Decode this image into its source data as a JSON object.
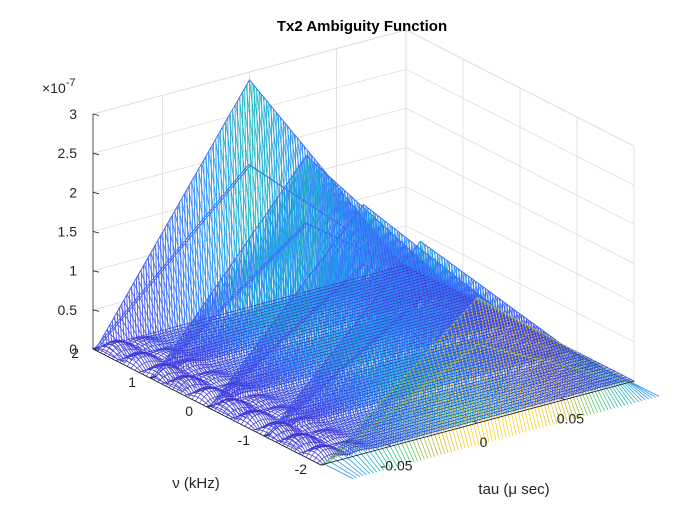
{
  "chart_data": {
    "type": "surface3d",
    "title": "Tx2 Ambiguity Function",
    "xlabel": "tau (μ sec)",
    "ylabel": "ν (kHz)",
    "zlabel": "",
    "z_exponent_label": "×10",
    "z_exponent": "-7",
    "xlim": [
      -0.09,
      0.09
    ],
    "ylim": [
      -2,
      2
    ],
    "zlim": [
      0,
      3e-07
    ],
    "x_ticks": [
      "-0.05",
      "0",
      "0.05"
    ],
    "y_ticks": [
      "2",
      "1",
      "0",
      "-1",
      "-2"
    ],
    "z_ticks": [
      "0",
      "0.5",
      "1",
      "1.5",
      "2",
      "2.5",
      "3"
    ],
    "grid": true,
    "colormap": [
      "#3d26a8",
      "#4a4ff0",
      "#2a8cff",
      "#1fb5c9",
      "#4dc47a",
      "#c9b933",
      "#f9d122"
    ],
    "ridges": [
      {
        "nu_khz": 2.0,
        "peak": 2.9e-07,
        "halfwidth_tau": 0.088
      },
      {
        "nu_khz": 1.0,
        "peak": 2.3e-07,
        "halfwidth_tau": 0.088
      },
      {
        "nu_khz": 0.0,
        "peak": 2.05e-07,
        "halfwidth_tau": 0.088
      },
      {
        "nu_khz": -1.0,
        "peak": 1.95e-07,
        "halfwidth_tau": 0.088
      },
      {
        "nu_khz": -2.0,
        "peak": 1.6e-07,
        "halfwidth_tau": 0.088
      }
    ]
  }
}
